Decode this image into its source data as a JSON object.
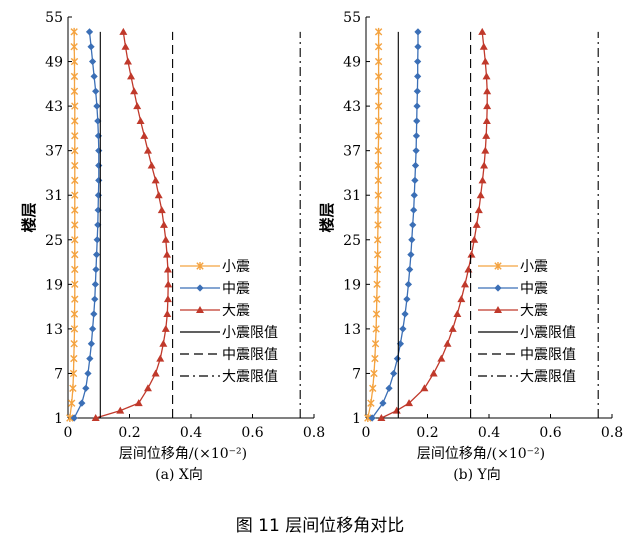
{
  "figure_caption": "图 11   层间位移角对比",
  "chart_data": [
    {
      "type": "line",
      "subtitle": "(a) X向",
      "xlabel": "层间位移角/(×10⁻²)",
      "ylabel": "楼层",
      "xlim": [
        0,
        0.8
      ],
      "ylim": [
        1,
        55
      ],
      "x_ticks": [
        "0",
        "0.2",
        "0.4",
        "0.6",
        "0.8"
      ],
      "y_ticks": [
        "1",
        "7",
        "13",
        "19",
        "25",
        "31",
        "37",
        "43",
        "49",
        "55"
      ],
      "grid": false,
      "legend_position": "right-lower",
      "series": [
        {
          "name": "小震",
          "color": "#f4a340",
          "marker": "x",
          "y": [
            1,
            3,
            5,
            7,
            9,
            11,
            13,
            15,
            17,
            19,
            21,
            23,
            25,
            27,
            29,
            31,
            33,
            35,
            37,
            39,
            41,
            43,
            45,
            47,
            49,
            51,
            53
          ],
          "x": [
            0.006,
            0.012,
            0.016,
            0.018,
            0.019,
            0.02,
            0.021,
            0.021,
            0.022,
            0.022,
            0.022,
            0.022,
            0.022,
            0.022,
            0.022,
            0.022,
            0.022,
            0.022,
            0.022,
            0.022,
            0.022,
            0.022,
            0.021,
            0.021,
            0.021,
            0.02,
            0.02
          ]
        },
        {
          "name": "中震",
          "color": "#3b6fb6",
          "marker": "diamond",
          "y": [
            1,
            3,
            5,
            7,
            9,
            11,
            13,
            15,
            17,
            19,
            21,
            23,
            25,
            27,
            29,
            31,
            33,
            35,
            37,
            39,
            41,
            43,
            45,
            47,
            49,
            51,
            53
          ],
          "x": [
            0.02,
            0.045,
            0.058,
            0.065,
            0.071,
            0.076,
            0.08,
            0.084,
            0.087,
            0.089,
            0.091,
            0.093,
            0.095,
            0.097,
            0.098,
            0.099,
            0.1,
            0.1,
            0.1,
            0.099,
            0.097,
            0.094,
            0.09,
            0.085,
            0.08,
            0.075,
            0.07
          ]
        },
        {
          "name": "大震",
          "color": "#c0392b",
          "marker": "triangle",
          "y": [
            1,
            2,
            3,
            5,
            7,
            9,
            11,
            13,
            15,
            17,
            19,
            21,
            23,
            25,
            27,
            29,
            31,
            33,
            35,
            37,
            39,
            41,
            43,
            45,
            47,
            49,
            51,
            53
          ],
          "x": [
            0.09,
            0.17,
            0.23,
            0.26,
            0.285,
            0.3,
            0.31,
            0.318,
            0.323,
            0.325,
            0.326,
            0.325,
            0.322,
            0.318,
            0.312,
            0.305,
            0.295,
            0.285,
            0.272,
            0.26,
            0.248,
            0.236,
            0.225,
            0.215,
            0.205,
            0.195,
            0.187,
            0.18
          ]
        },
        {
          "name": "小震限值",
          "color": "#000000",
          "style": "solid",
          "x": [
            0.105,
            0.105
          ],
          "y": [
            1,
            53
          ]
        },
        {
          "name": "中震限值",
          "color": "#000000",
          "style": "dashed",
          "x": [
            0.34,
            0.34
          ],
          "y": [
            1,
            53
          ]
        },
        {
          "name": "大震限值",
          "color": "#000000",
          "style": "dashdot",
          "x": [
            0.755,
            0.755
          ],
          "y": [
            1,
            53
          ]
        }
      ]
    },
    {
      "type": "line",
      "subtitle": "(b) Y向",
      "xlabel": "层间位移角/(×10⁻²)",
      "ylabel": "楼层",
      "xlim": [
        0,
        0.8
      ],
      "ylim": [
        1,
        55
      ],
      "x_ticks": [
        "0",
        "0.2",
        "0.4",
        "0.6",
        "0.8"
      ],
      "y_ticks": [
        "1",
        "7",
        "13",
        "19",
        "25",
        "31",
        "37",
        "43",
        "49",
        "55"
      ],
      "grid": false,
      "legend_position": "right-lower",
      "series": [
        {
          "name": "小震",
          "color": "#f4a340",
          "marker": "x",
          "y": [
            1,
            3,
            5,
            7,
            9,
            11,
            13,
            15,
            17,
            19,
            21,
            23,
            25,
            27,
            29,
            31,
            33,
            35,
            37,
            39,
            41,
            43,
            45,
            47,
            49,
            51,
            53
          ],
          "x": [
            0.006,
            0.016,
            0.022,
            0.026,
            0.029,
            0.031,
            0.033,
            0.034,
            0.035,
            0.036,
            0.037,
            0.038,
            0.038,
            0.039,
            0.039,
            0.04,
            0.04,
            0.04,
            0.04,
            0.041,
            0.041,
            0.041,
            0.041,
            0.041,
            0.041,
            0.041,
            0.041
          ]
        },
        {
          "name": "中震",
          "color": "#3b6fb6",
          "marker": "diamond",
          "y": [
            1,
            3,
            5,
            7,
            9,
            11,
            13,
            15,
            17,
            19,
            21,
            23,
            25,
            27,
            29,
            31,
            33,
            35,
            37,
            39,
            41,
            43,
            45,
            47,
            49,
            51,
            53
          ],
          "x": [
            0.02,
            0.055,
            0.075,
            0.09,
            0.102,
            0.112,
            0.12,
            0.127,
            0.133,
            0.138,
            0.142,
            0.146,
            0.149,
            0.152,
            0.155,
            0.157,
            0.159,
            0.161,
            0.163,
            0.164,
            0.165,
            0.166,
            0.167,
            0.168,
            0.168,
            0.169,
            0.169
          ]
        },
        {
          "name": "大震",
          "color": "#c0392b",
          "marker": "triangle",
          "y": [
            1,
            2,
            3,
            5,
            7,
            9,
            11,
            13,
            15,
            17,
            19,
            21,
            23,
            25,
            27,
            29,
            31,
            33,
            35,
            37,
            39,
            41,
            43,
            45,
            47,
            49,
            51,
            53
          ],
          "x": [
            0.05,
            0.1,
            0.14,
            0.19,
            0.22,
            0.245,
            0.265,
            0.282,
            0.297,
            0.31,
            0.322,
            0.333,
            0.343,
            0.352,
            0.36,
            0.367,
            0.373,
            0.379,
            0.384,
            0.388,
            0.391,
            0.393,
            0.394,
            0.394,
            0.392,
            0.388,
            0.383,
            0.378
          ]
        },
        {
          "name": "小震限值",
          "color": "#000000",
          "style": "solid",
          "x": [
            0.105,
            0.105
          ],
          "y": [
            1,
            53
          ]
        },
        {
          "name": "中震限值",
          "color": "#000000",
          "style": "dashed",
          "x": [
            0.34,
            0.34
          ],
          "y": [
            1,
            53
          ]
        },
        {
          "name": "大震限值",
          "color": "#000000",
          "style": "dashdot",
          "x": [
            0.755,
            0.755
          ],
          "y": [
            1,
            53
          ]
        }
      ]
    }
  ]
}
